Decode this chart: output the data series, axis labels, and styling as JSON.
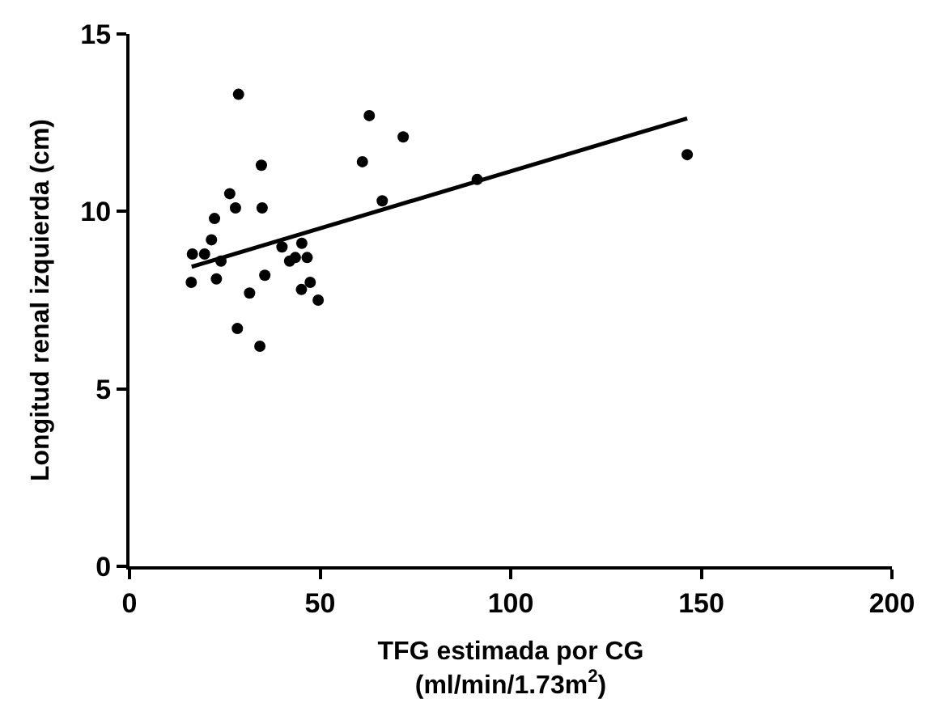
{
  "chart_data": {
    "type": "scatter",
    "xlabel": "TFG estimada por CG\n(ml/min/1.73m$^{2}$)",
    "ylabel": "Longitud renal izquierda (cm)",
    "series": [
      {
        "color": "#000000",
        "marker": "circle",
        "x": [
          16.2,
          16.5,
          19.7,
          21.5,
          22.3,
          22.8,
          24,
          26.3,
          27.8,
          28.6,
          28.3,
          31.5,
          34.6,
          34.8,
          34.2,
          35.5,
          40,
          42,
          43.5,
          45.2,
          46.6,
          45.1,
          47.4,
          49.5,
          61.1,
          62.9,
          66.3,
          71.8,
          91.2,
          146.3
        ],
        "values": [
          8.0,
          8.8,
          8.8,
          9.2,
          9.8,
          8.1,
          8.6,
          10.5,
          10.1,
          13.3,
          6.7,
          7.7,
          11.3,
          10.1,
          6.2,
          8.2,
          9.0,
          8.6,
          8.7,
          9.1,
          8.7,
          7.8,
          8.0,
          7.5,
          11.4,
          12.7,
          10.3,
          12.1,
          10.9,
          11.6
        ]
      },
      {
        "type": "line",
        "color": "#000000",
        "x": [
          16.3,
          146.3
        ],
        "values": [
          8.44,
          12.62
        ]
      }
    ],
    "xlim": [
      0,
      200
    ],
    "xticks": [
      0,
      50,
      100,
      150,
      200
    ],
    "ylim": [
      0,
      15
    ],
    "yticks": [
      0,
      5,
      10,
      15
    ],
    "legend": false
  }
}
